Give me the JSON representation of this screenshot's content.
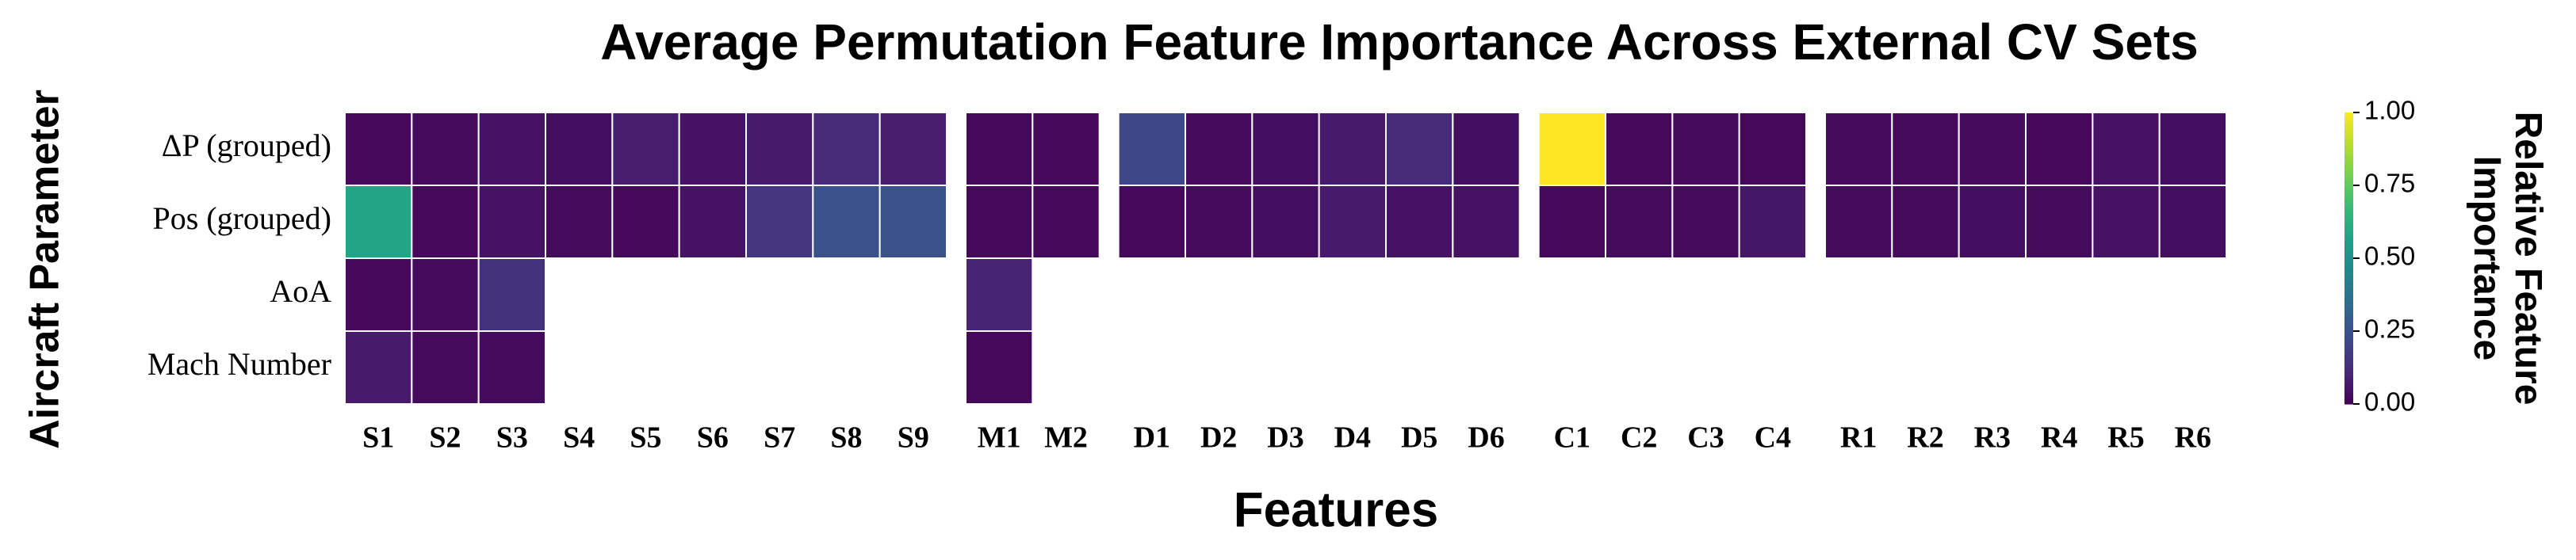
{
  "chart_data": {
    "type": "heatmap",
    "title": "Average Permutation Feature Importance Across External CV Sets",
    "x_label": "Features",
    "y_label": "Aircraft Parameter",
    "colorbar_label": "Relative Feature Importance",
    "colormap": "viridis",
    "x": [
      "S1",
      "S2",
      "S3",
      "S4",
      "S5",
      "S6",
      "S7",
      "S8",
      "S9",
      "M1",
      "M2",
      "D1",
      "D2",
      "D3",
      "D4",
      "D5",
      "D6",
      "C1",
      "C2",
      "C3",
      "C4",
      "R1",
      "R2",
      "R3",
      "R4",
      "R5",
      "R6"
    ],
    "y": [
      "ΔP (grouped)",
      "Pos (grouped)",
      "AoA",
      "Mach Number"
    ],
    "values": [
      [
        0.02,
        0.03,
        0.05,
        0.04,
        0.08,
        0.05,
        0.07,
        0.12,
        0.08,
        0.02,
        0.02,
        0.22,
        0.03,
        0.04,
        0.07,
        0.12,
        0.04,
        1.0,
        0.02,
        0.03,
        0.02,
        0.03,
        0.03,
        0.03,
        0.02,
        0.05,
        0.04
      ],
      [
        0.58,
        0.02,
        0.05,
        0.03,
        0.02,
        0.05,
        0.16,
        0.25,
        0.25,
        0.02,
        0.02,
        0.02,
        0.03,
        0.04,
        0.07,
        0.05,
        0.05,
        0.02,
        0.03,
        0.03,
        0.06,
        0.03,
        0.03,
        0.04,
        0.03,
        0.05,
        0.04
      ],
      [
        0.02,
        0.03,
        0.14,
        null,
        null,
        null,
        null,
        null,
        null,
        0.1,
        null,
        null,
        null,
        null,
        null,
        null,
        null,
        null,
        null,
        null,
        null,
        null,
        null,
        null,
        null,
        null,
        null
      ],
      [
        0.07,
        0.03,
        0.03,
        null,
        null,
        null,
        null,
        null,
        null,
        0.02,
        null,
        null,
        null,
        null,
        null,
        null,
        null,
        null,
        null,
        null,
        null,
        null,
        null,
        null,
        null,
        null,
        null
      ]
    ],
    "clim": [
      0,
      1
    ],
    "cticks": [
      {
        "value": 0,
        "label": "0.00"
      },
      {
        "value": 0.25,
        "label": "0.25"
      },
      {
        "value": 0.5,
        "label": "0.50"
      },
      {
        "value": 0.75,
        "label": "0.75"
      },
      {
        "value": 1,
        "label": "1.00"
      }
    ]
  }
}
